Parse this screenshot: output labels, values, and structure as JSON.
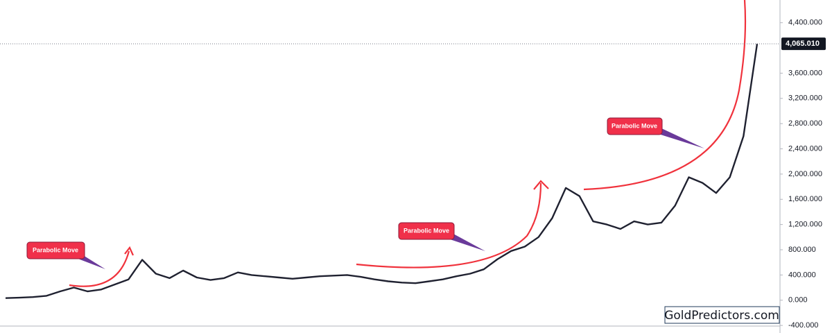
{
  "chart_data": {
    "type": "line",
    "series": [
      {
        "color": "#1f2130",
        "values": [
          33,
          40,
          50,
          70,
          140,
          200,
          140,
          170,
          250,
          330,
          640,
          420,
          350,
          470,
          360,
          320,
          350,
          440,
          400,
          380,
          360,
          340,
          360,
          380,
          390,
          400,
          370,
          330,
          300,
          280,
          270,
          300,
          330,
          380,
          420,
          490,
          650,
          780,
          850,
          1000,
          1300,
          1780,
          1650,
          1250,
          1200,
          1130,
          1250,
          1200,
          1230,
          1500,
          1950,
          1860,
          1700,
          1950,
          2600,
          4065.01
        ]
      }
    ],
    "ylim": [
      -410,
      4760
    ],
    "yticks": [
      {
        "value": -400,
        "label": "-400.000"
      },
      {
        "value": 0,
        "label": "0.000"
      },
      {
        "value": 400,
        "label": "400.000"
      },
      {
        "value": 800,
        "label": "800.000"
      },
      {
        "value": 1200,
        "label": "1,200.000"
      },
      {
        "value": 1600,
        "label": "1,600.000"
      },
      {
        "value": 2000,
        "label": "2,000.000"
      },
      {
        "value": 2400,
        "label": "2,400.000"
      },
      {
        "value": 2800,
        "label": "2,800.000"
      },
      {
        "value": 3200,
        "label": "3,200.000"
      },
      {
        "value": 3600,
        "label": "3,600.000"
      },
      {
        "value": 4400,
        "label": "4,400.000"
      }
    ],
    "last_price": {
      "value": 4065.01,
      "label": "4,065.010"
    },
    "annotations": [
      "Parabolic Move",
      "Parabolic Move",
      "Parabolic Move"
    ],
    "watermark": "GoldPredictors.com",
    "grid": false
  }
}
